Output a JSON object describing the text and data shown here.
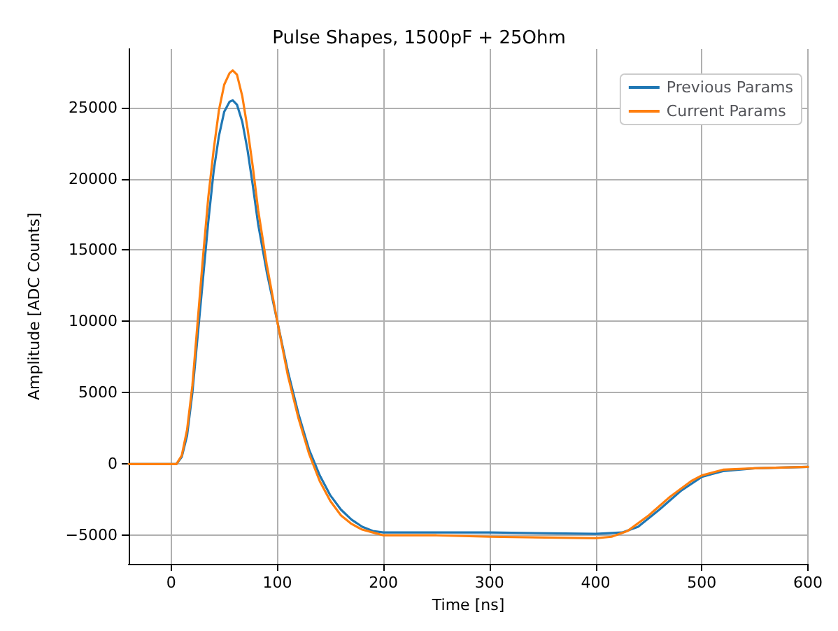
{
  "chart_data": {
    "type": "line",
    "title": "Pulse Shapes, 1500pF + 25Ohm",
    "xlabel": "Time [ns]",
    "ylabel": "Amplitude [ADC Counts]",
    "xlim": [
      -40,
      600
    ],
    "xticks": [
      0,
      100,
      200,
      300,
      400,
      500,
      600
    ],
    "ylim": [
      -7000,
      29100
    ],
    "yticks": [
      -5000,
      0,
      5000,
      10000,
      15000,
      20000,
      25000
    ],
    "grid": true,
    "legend": "top right",
    "marker": "none",
    "line_style": "solid",
    "series": [
      {
        "name": "Previous Params",
        "color": "#1f77b4",
        "x": [
          -40,
          5,
          10,
          15,
          20,
          25,
          30,
          35,
          40,
          45,
          50,
          55,
          58,
          62,
          67,
          72,
          77,
          82,
          90,
          100,
          110,
          120,
          130,
          140,
          150,
          160,
          170,
          180,
          190,
          200,
          220,
          300,
          400,
          425,
          440,
          460,
          480,
          500,
          520,
          550,
          600
        ],
        "values": [
          0,
          0,
          500,
          2000,
          5000,
          9000,
          13000,
          17000,
          20500,
          23000,
          24700,
          25400,
          25500,
          25200,
          24000,
          22000,
          19500,
          16800,
          13500,
          10000,
          6500,
          3500,
          1000,
          -800,
          -2200,
          -3200,
          -3900,
          -4400,
          -4700,
          -4800,
          -4800,
          -4800,
          -4900,
          -4800,
          -4400,
          -3200,
          -1900,
          -900,
          -500,
          -300,
          -200
        ]
      },
      {
        "name": "Current Params",
        "color": "#ff7f0e",
        "x": [
          -40,
          5,
          10,
          15,
          20,
          25,
          30,
          35,
          40,
          45,
          50,
          55,
          58,
          62,
          67,
          72,
          77,
          82,
          90,
          100,
          110,
          120,
          130,
          140,
          150,
          160,
          170,
          180,
          190,
          200,
          250,
          300,
          400,
          415,
          430,
          450,
          470,
          490,
          500,
          520,
          550,
          600
        ],
        "values": [
          0,
          0,
          600,
          2400,
          5500,
          10000,
          14500,
          18700,
          22000,
          24800,
          26600,
          27400,
          27600,
          27300,
          25800,
          23500,
          20800,
          17800,
          14000,
          10000,
          6200,
          3200,
          700,
          -1200,
          -2600,
          -3600,
          -4200,
          -4600,
          -4800,
          -5000,
          -5000,
          -5100,
          -5200,
          -5100,
          -4700,
          -3600,
          -2300,
          -1200,
          -800,
          -400,
          -300,
          -200
        ]
      }
    ]
  }
}
